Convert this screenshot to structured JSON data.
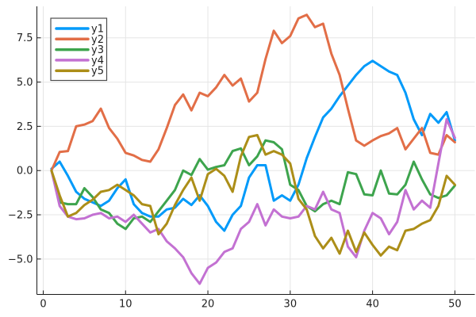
{
  "chart_data": {
    "type": "line",
    "title": "",
    "xlabel": "",
    "ylabel": "",
    "grid": true,
    "xlim": [
      -0.77,
      52.42
    ],
    "ylim": [
      -7.0,
      9.28
    ],
    "xticks": [
      0,
      10,
      20,
      30,
      40,
      50
    ],
    "xtick_labels": [
      "0",
      "10",
      "20",
      "30",
      "40",
      "50"
    ],
    "yticks": [
      7.5,
      5.0,
      2.5,
      0.0,
      -2.5,
      -5.0
    ],
    "ytick_labels": [
      "7.5",
      "5.0",
      "2.5",
      "0.0",
      "−2.5",
      "−5.0"
    ],
    "legend_position": "top-left",
    "x": [
      1,
      2,
      3,
      4,
      5,
      6,
      7,
      8,
      9,
      10,
      11,
      12,
      13,
      14,
      15,
      16,
      17,
      18,
      19,
      20,
      21,
      22,
      23,
      24,
      25,
      26,
      27,
      28,
      29,
      30,
      31,
      32,
      33,
      34,
      35,
      36,
      37,
      38,
      39,
      40,
      41,
      42,
      43,
      44,
      45,
      46,
      47,
      48,
      49,
      50
    ],
    "series": [
      {
        "name": "y1",
        "color": "#009AFA",
        "values": [
          0.1,
          0.5,
          -0.3,
          -1.2,
          -1.6,
          -1.8,
          -2.0,
          -1.7,
          -1.0,
          -0.5,
          -1.9,
          -2.4,
          -2.6,
          -2.6,
          -2.2,
          -2.1,
          -1.6,
          -1.95,
          -1.4,
          -2.0,
          -2.9,
          -3.4,
          -2.5,
          -2.0,
          -0.4,
          0.3,
          0.3,
          -1.7,
          -1.4,
          -1.7,
          -0.8,
          0.7,
          1.9,
          3.0,
          3.5,
          4.2,
          4.8,
          5.4,
          5.9,
          6.2,
          5.9,
          5.6,
          5.4,
          4.4,
          2.9,
          2.0,
          3.2,
          2.7,
          3.3,
          1.7
        ]
      },
      {
        "name": "y2",
        "color": "#E26E47",
        "values": [
          0.0,
          1.05,
          1.1,
          2.5,
          2.6,
          2.8,
          3.5,
          2.4,
          1.8,
          1.0,
          0.85,
          0.6,
          0.5,
          1.2,
          2.4,
          3.7,
          4.3,
          3.4,
          4.4,
          4.2,
          4.7,
          5.4,
          4.8,
          5.2,
          3.9,
          4.4,
          6.3,
          7.9,
          7.2,
          7.6,
          8.6,
          8.8,
          8.1,
          8.3,
          6.6,
          5.4,
          3.5,
          1.7,
          1.4,
          1.7,
          1.95,
          2.1,
          2.4,
          1.2,
          1.8,
          2.4,
          1.0,
          0.9,
          2.0,
          1.6
        ]
      },
      {
        "name": "y3",
        "color": "#3DA44D",
        "values": [
          0.0,
          -1.8,
          -1.9,
          -1.9,
          -1.0,
          -1.5,
          -2.2,
          -2.4,
          -3.0,
          -3.3,
          -2.7,
          -2.6,
          -2.9,
          -2.3,
          -1.7,
          -1.1,
          0.0,
          -0.25,
          0.65,
          0.05,
          0.2,
          0.3,
          1.1,
          1.25,
          0.3,
          0.8,
          1.7,
          1.6,
          1.2,
          -0.8,
          -1.1,
          -2.0,
          -2.3,
          -1.9,
          -1.7,
          -1.9,
          -0.1,
          -0.2,
          -1.35,
          -1.4,
          0.0,
          -1.3,
          -1.35,
          -0.8,
          0.5,
          -0.5,
          -1.35,
          -1.55,
          -1.4,
          -0.85
        ]
      },
      {
        "name": "y4",
        "color": "#C371D2",
        "values": [
          0.0,
          -2.0,
          -2.6,
          -2.75,
          -2.7,
          -2.5,
          -2.4,
          -2.7,
          -2.6,
          -2.9,
          -2.5,
          -3.0,
          -3.5,
          -3.3,
          -4.0,
          -4.4,
          -4.9,
          -5.8,
          -6.4,
          -5.5,
          -5.2,
          -4.6,
          -4.4,
          -3.3,
          -2.9,
          -1.9,
          -3.1,
          -2.2,
          -2.6,
          -2.7,
          -2.6,
          -2.0,
          -2.2,
          -1.2,
          -2.2,
          -2.4,
          -4.3,
          -4.9,
          -3.4,
          -2.4,
          -2.7,
          -3.6,
          -2.9,
          -1.1,
          -2.2,
          -1.7,
          -2.1,
          0.4,
          2.9,
          1.85
        ]
      },
      {
        "name": "y5",
        "color": "#AC8E18",
        "values": [
          0.0,
          -1.4,
          -2.6,
          -2.4,
          -1.95,
          -1.65,
          -1.2,
          -1.1,
          -0.8,
          -1.1,
          -1.4,
          -1.9,
          -2.0,
          -3.6,
          -3.0,
          -1.95,
          -1.1,
          -0.4,
          -1.7,
          -0.2,
          0.1,
          -0.3,
          -1.2,
          0.8,
          1.9,
          2.0,
          0.9,
          1.1,
          0.9,
          0.4,
          -1.6,
          -2.2,
          -3.7,
          -4.4,
          -3.8,
          -4.7,
          -3.4,
          -4.6,
          -3.5,
          -4.2,
          -4.8,
          -4.3,
          -4.5,
          -3.4,
          -3.3,
          -3.0,
          -2.8,
          -2.0,
          -0.3,
          -0.8
        ]
      }
    ],
    "style": {
      "grid_color": "#E5E5E5",
      "spine_color": "#1A1A1A",
      "legend_border_color": "#4D4D4D",
      "background_color": "#FFFFFF",
      "line_width": 3
    }
  }
}
